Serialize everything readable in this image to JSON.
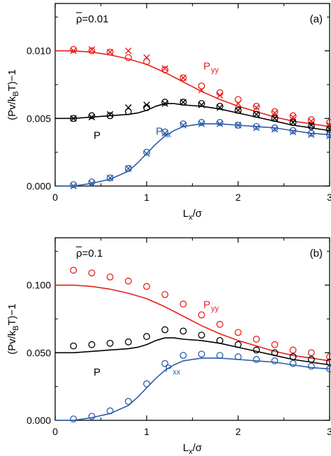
{
  "chart_data": [
    {
      "type": "line",
      "panel_label": "(a)",
      "density_label": "ρ=0.01",
      "density_symbol": "ρ",
      "density_value": "=0.01",
      "xlabel_main": "L",
      "xlabel_sub": "x",
      "xlabel_tail": "/σ",
      "ylabel_head": "(Pv/k",
      "ylabel_sub": "B",
      "ylabel_tail": "T)−1",
      "xlim": [
        0,
        3
      ],
      "ylim": [
        0,
        0.0135
      ],
      "xticks": [
        0,
        1,
        2,
        3
      ],
      "xtick_labels": [
        "0",
        "1",
        "2",
        "3"
      ],
      "yticks": [
        0,
        0.005,
        0.01
      ],
      "ytick_labels": [
        "0.000",
        "0.005",
        "0.010"
      ],
      "series": [
        {
          "name": "Pyy",
          "label_main": "P",
          "label_sub": "yy",
          "label_x": 1.62,
          "label_y": 0.0086,
          "color": "#e8201c",
          "curve": {
            "x": [
              0,
              0.2,
              0.4,
              0.6,
              0.8,
              1.0,
              1.2,
              1.4,
              1.6,
              1.8,
              2.0,
              2.2,
              2.4,
              2.6,
              2.8,
              3.0
            ],
            "y": [
              0.01,
              0.01,
              0.0099,
              0.0097,
              0.0094,
              0.009,
              0.0084,
              0.0077,
              0.007,
              0.0064,
              0.0059,
              0.0055,
              0.0051,
              0.0048,
              0.0046,
              0.0044
            ]
          },
          "circles": {
            "x": [
              0.2,
              0.4,
              0.6,
              0.8,
              1.0,
              1.2,
              1.4,
              1.6,
              1.8,
              2.0,
              2.2,
              2.4,
              2.6,
              2.8,
              3.0
            ],
            "y": [
              0.0101,
              0.01,
              0.0099,
              0.0095,
              0.0092,
              0.0086,
              0.008,
              0.0074,
              0.0069,
              0.0064,
              0.0059,
              0.0055,
              0.0052,
              0.0049,
              0.0047
            ]
          },
          "crosses": {
            "x": [
              0.2,
              0.4,
              0.6,
              0.8,
              1.0,
              1.2,
              1.4,
              1.6,
              1.8,
              2.0,
              2.2,
              2.4,
              2.6,
              2.8,
              3.0
            ],
            "y": [
              0.01,
              0.0101,
              0.0099,
              0.01,
              0.0095,
              0.0087,
              0.008,
              0.0071,
              0.0067,
              0.0061,
              0.0058,
              0.0054,
              0.0051,
              0.0048,
              0.0045
            ]
          }
        },
        {
          "name": "P",
          "label_main": "P",
          "label_sub": "",
          "label_x": 0.42,
          "label_y": 0.0035,
          "color": "#000000",
          "curve": {
            "x": [
              0,
              0.2,
              0.4,
              0.6,
              0.8,
              0.9,
              1.0,
              1.1,
              1.2,
              1.3,
              1.4,
              1.6,
              1.8,
              2.0,
              2.2,
              2.4,
              2.6,
              2.8,
              3.0
            ],
            "y": [
              0.005,
              0.005,
              0.0051,
              0.0052,
              0.0053,
              0.0054,
              0.0056,
              0.0059,
              0.0061,
              0.0061,
              0.006,
              0.0059,
              0.0057,
              0.0054,
              0.0051,
              0.0048,
              0.0045,
              0.0043,
              0.0041
            ]
          },
          "circles": {
            "x": [
              0.2,
              0.4,
              0.6,
              0.8,
              1.0,
              1.2,
              1.4,
              1.6,
              1.8,
              2.0,
              2.2,
              2.4,
              2.6,
              2.8,
              3.0
            ],
            "y": [
              0.005,
              0.0052,
              0.0052,
              0.0055,
              0.0058,
              0.0062,
              0.0062,
              0.0061,
              0.0059,
              0.0056,
              0.0053,
              0.005,
              0.0047,
              0.0044,
              0.0042
            ]
          },
          "crosses": {
            "x": [
              0.2,
              0.4,
              0.6,
              0.8,
              1.0,
              1.2,
              1.4,
              1.6,
              1.8,
              2.0,
              2.2,
              2.4,
              2.6,
              2.8,
              3.0
            ],
            "y": [
              0.005,
              0.0051,
              0.0053,
              0.0058,
              0.006,
              0.0061,
              0.0062,
              0.006,
              0.0058,
              0.0056,
              0.0053,
              0.005,
              0.0047,
              0.0045,
              0.0042
            ]
          }
        },
        {
          "name": "Pxx",
          "label_main": "P",
          "label_sub": "xx",
          "label_x": 1.1,
          "label_y": 0.0038,
          "color": "#2a5ca8",
          "curve": {
            "x": [
              0,
              0.2,
              0.4,
              0.6,
              0.8,
              0.9,
              1.0,
              1.1,
              1.2,
              1.3,
              1.4,
              1.6,
              1.8,
              2.0,
              2.2,
              2.4,
              2.6,
              2.8,
              3.0
            ],
            "y": [
              0.0,
              0.0,
              0.0002,
              0.0005,
              0.0011,
              0.0017,
              0.0024,
              0.0031,
              0.0037,
              0.0041,
              0.0044,
              0.0046,
              0.0046,
              0.0045,
              0.0044,
              0.0043,
              0.0041,
              0.0039,
              0.0038
            ]
          },
          "circles": {
            "x": [
              0.2,
              0.4,
              0.6,
              0.8,
              1.0,
              1.2,
              1.4,
              1.6,
              1.8,
              2.0,
              2.2,
              2.4,
              2.6,
              2.8,
              3.0
            ],
            "y": [
              0.0001,
              0.0003,
              0.0006,
              0.0013,
              0.0025,
              0.004,
              0.0046,
              0.0047,
              0.0047,
              0.0045,
              0.0044,
              0.0043,
              0.0041,
              0.0039,
              0.0038
            ]
          },
          "crosses": {
            "x": [
              0.2,
              0.4,
              0.6,
              0.8,
              1.0,
              1.2,
              1.4,
              1.6,
              1.8,
              2.0,
              2.2,
              2.4,
              2.6,
              2.8,
              3.0
            ],
            "y": [
              0.0,
              0.0002,
              0.0006,
              0.0013,
              0.0024,
              0.0039,
              0.0045,
              0.0046,
              0.0046,
              0.0045,
              0.0043,
              0.0042,
              0.004,
              0.0038,
              0.0037
            ]
          }
        }
      ]
    },
    {
      "type": "line",
      "panel_label": "(b)",
      "density_label": "ρ=0.1",
      "density_symbol": "ρ",
      "density_value": "=0.1",
      "xlabel_main": "L",
      "xlabel_sub": "x",
      "xlabel_tail": "/σ",
      "ylabel_head": "(Pv/k",
      "ylabel_sub": "B",
      "ylabel_tail": "T)−1",
      "xlim": [
        0,
        3
      ],
      "ylim": [
        0,
        0.135
      ],
      "xticks": [
        0,
        1,
        2,
        3
      ],
      "xtick_labels": [
        "0",
        "1",
        "2",
        "3"
      ],
      "yticks": [
        0,
        0.05,
        0.1
      ],
      "ytick_labels": [
        "0.000",
        "0.050",
        "0.100"
      ],
      "series": [
        {
          "name": "Pyy",
          "label_main": "P",
          "label_sub": "yy",
          "label_x": 1.62,
          "label_y": 0.083,
          "color": "#e8201c",
          "curve": {
            "x": [
              0,
              0.2,
              0.4,
              0.6,
              0.8,
              1.0,
              1.2,
              1.4,
              1.6,
              1.8,
              2.0,
              2.2,
              2.4,
              2.6,
              2.8,
              3.0
            ],
            "y": [
              0.1,
              0.1,
              0.099,
              0.097,
              0.094,
              0.09,
              0.084,
              0.077,
              0.07,
              0.064,
              0.059,
              0.055,
              0.051,
              0.048,
              0.046,
              0.044
            ]
          },
          "circles": {
            "x": [
              0.2,
              0.4,
              0.6,
              0.8,
              1.0,
              1.2,
              1.4,
              1.6,
              1.8,
              2.0,
              2.2,
              2.4,
              2.6,
              2.8,
              3.0
            ],
            "y": [
              0.111,
              0.109,
              0.106,
              0.103,
              0.099,
              0.093,
              0.086,
              0.078,
              0.071,
              0.065,
              0.06,
              0.056,
              0.052,
              0.05,
              0.047
            ]
          },
          "crosses": {
            "x": [],
            "y": []
          }
        },
        {
          "name": "P",
          "label_main": "P",
          "label_sub": "",
          "label_x": 0.42,
          "label_y": 0.033,
          "color": "#000000",
          "curve": {
            "x": [
              0,
              0.2,
              0.4,
              0.6,
              0.8,
              0.9,
              1.0,
              1.1,
              1.2,
              1.3,
              1.4,
              1.6,
              1.8,
              2.0,
              2.2,
              2.4,
              2.6,
              2.8,
              3.0
            ],
            "y": [
              0.05,
              0.05,
              0.051,
              0.052,
              0.053,
              0.054,
              0.056,
              0.059,
              0.061,
              0.061,
              0.06,
              0.059,
              0.057,
              0.054,
              0.051,
              0.048,
              0.045,
              0.043,
              0.041
            ]
          },
          "circles": {
            "x": [
              0.2,
              0.4,
              0.6,
              0.8,
              1.0,
              1.2,
              1.4,
              1.6,
              1.8,
              2.0,
              2.2,
              2.4,
              2.6,
              2.8,
              3.0
            ],
            "y": [
              0.055,
              0.056,
              0.057,
              0.058,
              0.062,
              0.067,
              0.066,
              0.063,
              0.059,
              0.056,
              0.052,
              0.05,
              0.047,
              0.045,
              0.043
            ]
          },
          "crosses": {
            "x": [],
            "y": []
          }
        },
        {
          "name": "Pxx",
          "label_main": "P",
          "label_sub": "xx",
          "label_x": 1.2,
          "label_y": 0.036,
          "color": "#2a5ca8",
          "curve": {
            "x": [
              0,
              0.2,
              0.4,
              0.6,
              0.8,
              0.9,
              1.0,
              1.1,
              1.2,
              1.3,
              1.4,
              1.6,
              1.8,
              2.0,
              2.2,
              2.4,
              2.6,
              2.8,
              3.0
            ],
            "y": [
              0.0,
              0.0,
              0.002,
              0.005,
              0.011,
              0.017,
              0.024,
              0.031,
              0.037,
              0.041,
              0.044,
              0.046,
              0.046,
              0.045,
              0.044,
              0.043,
              0.041,
              0.039,
              0.038
            ]
          },
          "circles": {
            "x": [
              0.2,
              0.4,
              0.6,
              0.8,
              1.0,
              1.2,
              1.4,
              1.6,
              1.8,
              2.0,
              2.2,
              2.4,
              2.6,
              2.8,
              3.0
            ],
            "y": [
              0.001,
              0.003,
              0.007,
              0.014,
              0.027,
              0.042,
              0.048,
              0.049,
              0.048,
              0.047,
              0.045,
              0.044,
              0.042,
              0.04,
              0.038
            ]
          },
          "crosses": {
            "x": [],
            "y": []
          }
        }
      ]
    }
  ]
}
